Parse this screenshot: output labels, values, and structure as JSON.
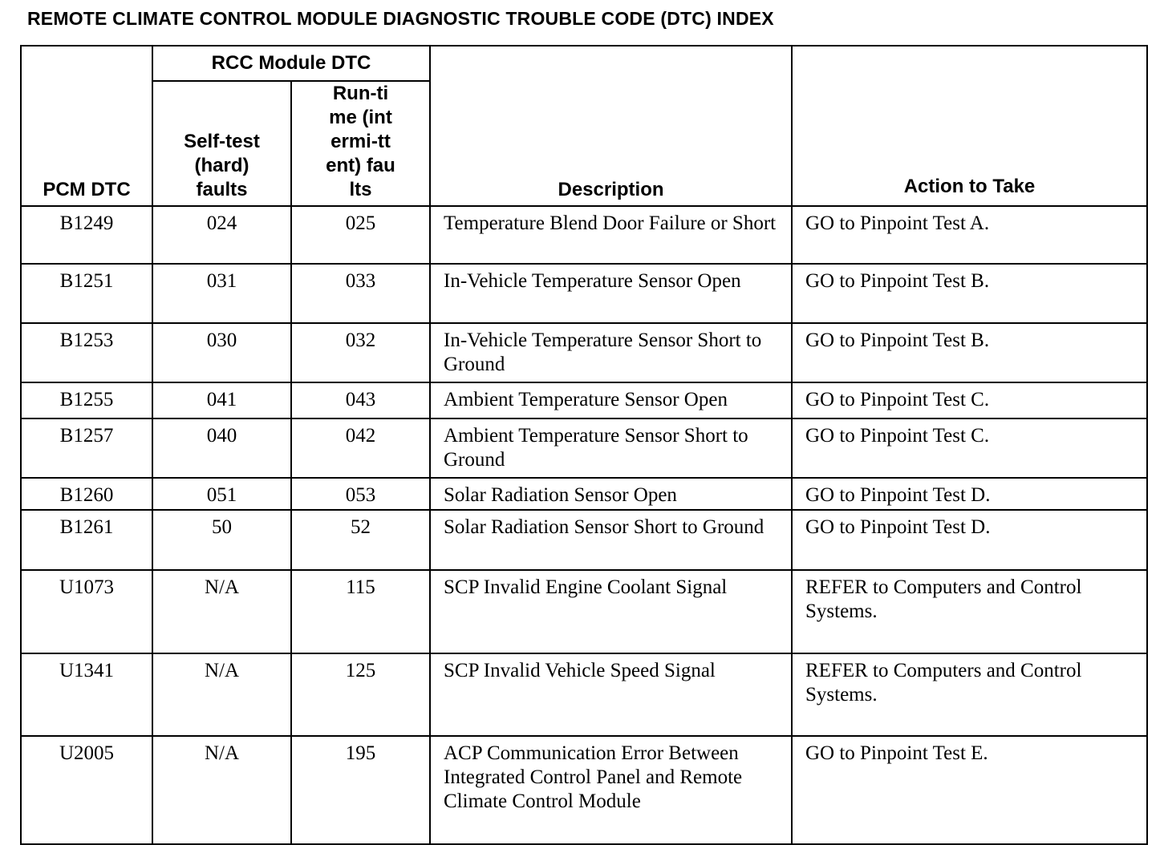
{
  "title": "REMOTE CLIMATE CONTROL MODULE DIAGNOSTIC TROUBLE CODE (DTC) INDEX",
  "headers": {
    "pcm_dtc": "PCM DTC",
    "rcc_group": "RCC Module DTC",
    "self_test": "Self-test (hard) faults",
    "run_time": "Run-time (intermi-ttent) faults",
    "description": "Description",
    "action": "Action to Take"
  },
  "rows": [
    {
      "pcm": "B1249",
      "self": "024",
      "run": "025",
      "desc": "Temperature Blend Door Failure or Short",
      "action": "GO to Pinpoint Test A."
    },
    {
      "pcm": "B1251",
      "self": "031",
      "run": "033",
      "desc": "In-Vehicle Temperature Sensor Open",
      "action": "GO to Pinpoint Test B."
    },
    {
      "pcm": "B1253",
      "self": "030",
      "run": "032",
      "desc": "In-Vehicle Temperature Sensor Short to Ground",
      "action": "GO to Pinpoint Test B."
    },
    {
      "pcm": "B1255",
      "self": "041",
      "run": "043",
      "desc": "Ambient Temperature Sensor Open",
      "action": "GO to Pinpoint Test C."
    },
    {
      "pcm": "B1257",
      "self": "040",
      "run": "042",
      "desc": "Ambient Temperature Sensor Short to Ground",
      "action": "GO to Pinpoint Test C."
    },
    {
      "pcm": "B1260",
      "self": "051",
      "run": "053",
      "desc": "Solar Radiation Sensor Open",
      "action": "GO to Pinpoint Test D."
    },
    {
      "pcm": "B1261",
      "self": "50",
      "run": "52",
      "desc": "Solar Radiation Sensor Short to Ground",
      "action": "GO to Pinpoint Test D."
    },
    {
      "pcm": "U1073",
      "self": "N/A",
      "run": "115",
      "desc": "SCP Invalid Engine Coolant Signal",
      "action": "REFER to Computers and Control Systems."
    },
    {
      "pcm": "U1341",
      "self": "N/A",
      "run": "125",
      "desc": "SCP Invalid Vehicle Speed Signal",
      "action": "REFER to Computers and Control Systems."
    },
    {
      "pcm": "U2005",
      "self": "N/A",
      "run": "195",
      "desc": "ACP Communication Error Between Integrated Control Panel and Remote Climate Control Module",
      "action": "GO to Pinpoint Test E."
    }
  ]
}
